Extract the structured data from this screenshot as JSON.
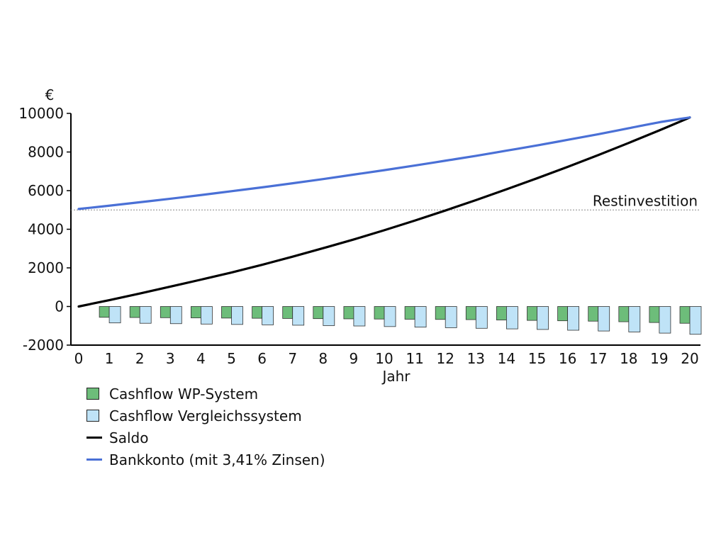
{
  "chart_data": {
    "type": "bar",
    "ylabel": "€",
    "xlabel": "Jahr",
    "ylim": [
      -2000,
      10000
    ],
    "yticks": [
      -2000,
      0,
      2000,
      4000,
      6000,
      8000,
      10000
    ],
    "categories": [
      "0",
      "1",
      "2",
      "3",
      "4",
      "5",
      "6",
      "7",
      "8",
      "9",
      "10",
      "11",
      "12",
      "13",
      "14",
      "15",
      "16",
      "17",
      "18",
      "19",
      "20"
    ],
    "series": [
      {
        "name": "Cashflow WP-System",
        "kind": "bar",
        "color": "#6dbd7a",
        "values": [
          null,
          -560,
          -570,
          -580,
          -590,
          -600,
          -610,
          -620,
          -630,
          -640,
          -650,
          -660,
          -670,
          -680,
          -700,
          -720,
          -740,
          -760,
          -790,
          -830,
          -870
        ]
      },
      {
        "name": "Cashflow Vergleichssystem",
        "kind": "bar",
        "color": "#bfe3f7",
        "values": [
          null,
          -850,
          -870,
          -890,
          -910,
          -930,
          -950,
          -970,
          -990,
          -1010,
          -1040,
          -1070,
          -1100,
          -1130,
          -1160,
          -1190,
          -1230,
          -1270,
          -1320,
          -1380,
          -1440
        ]
      },
      {
        "name": "Saldo",
        "kind": "line",
        "color": "#000000",
        "values": [
          0,
          330,
          670,
          1030,
          1390,
          1760,
          2160,
          2580,
          3020,
          3470,
          3950,
          4450,
          4970,
          5510,
          6070,
          6640,
          7230,
          7840,
          8470,
          9120,
          9790
        ]
      },
      {
        "name": "Bankkonto (mit 3,41% Zinsen)",
        "kind": "line",
        "color": "#4a70d6",
        "values": [
          5050,
          5220,
          5400,
          5580,
          5770,
          5970,
          6170,
          6380,
          6600,
          6830,
          7060,
          7300,
          7550,
          7800,
          8070,
          8340,
          8630,
          8920,
          9230,
          9540,
          9790
        ]
      }
    ],
    "reference_line": {
      "label": "Restinvestition",
      "value": 5000,
      "color": "#888888"
    },
    "legend_position": "bottom-left",
    "grid": false
  }
}
